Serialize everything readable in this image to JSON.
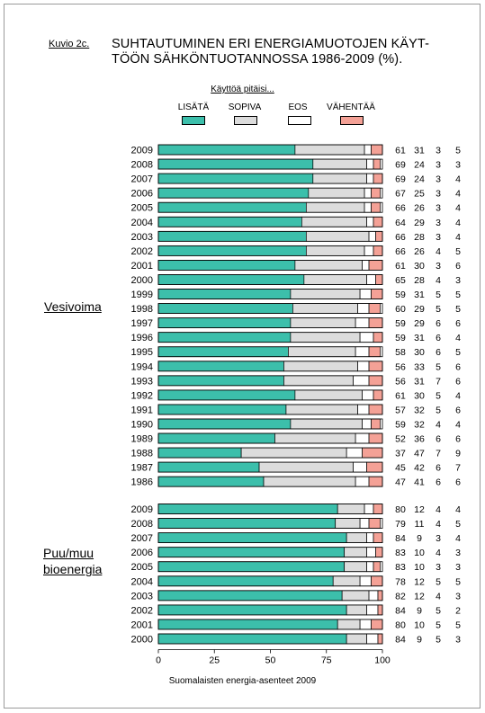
{
  "figure_label": "Kuvio 2c.",
  "title_lines": [
    "SUHTAUTUMINEN ERI ENERGIAMUOTOJEN KÄYT-",
    "TÖÖN SÄHKÖNTUOTANNOSSA 1986-2009 (%)."
  ],
  "legend": {
    "heading": "Käyttöä pitäisi...",
    "items": [
      {
        "label": "LISÄTÄ",
        "color": "#3cbfab"
      },
      {
        "label": "SOPIVA",
        "color": "#dcdcdc"
      },
      {
        "label": "EOS",
        "color": "#ffffff"
      },
      {
        "label": "VÄHENTÄÄ",
        "color": "#f4a196"
      }
    ]
  },
  "source": "Suomalaisten energia-asenteet 2009",
  "chart_data": {
    "type": "bar",
    "orientation": "horizontal",
    "stacked": true,
    "xlim": [
      0,
      100
    ],
    "xticks": [
      "0",
      "25",
      "50",
      "75",
      "100"
    ],
    "series_names": [
      "LISÄTÄ",
      "SOPIVA",
      "EOS",
      "VÄHENTÄÄ"
    ],
    "groups": [
      {
        "label": "Vesivoima",
        "rows": [
          {
            "year": "2009",
            "values": [
              61,
              31,
              3,
              5
            ]
          },
          {
            "year": "2008",
            "values": [
              69,
              24,
              3,
              3
            ]
          },
          {
            "year": "2007",
            "values": [
              69,
              24,
              3,
              4
            ]
          },
          {
            "year": "2006",
            "values": [
              67,
              25,
              3,
              4
            ]
          },
          {
            "year": "2005",
            "values": [
              66,
              26,
              3,
              4
            ]
          },
          {
            "year": "2004",
            "values": [
              64,
              29,
              3,
              4
            ]
          },
          {
            "year": "2003",
            "values": [
              66,
              28,
              3,
              4
            ]
          },
          {
            "year": "2002",
            "values": [
              66,
              26,
              4,
              5
            ]
          },
          {
            "year": "2001",
            "values": [
              61,
              30,
              3,
              6
            ]
          },
          {
            "year": "2000",
            "values": [
              65,
              28,
              4,
              3
            ]
          },
          {
            "year": "1999",
            "values": [
              59,
              31,
              5,
              5
            ]
          },
          {
            "year": "1998",
            "values": [
              60,
              29,
              5,
              5
            ]
          },
          {
            "year": "1997",
            "values": [
              59,
              29,
              6,
              6
            ]
          },
          {
            "year": "1996",
            "values": [
              59,
              31,
              6,
              4
            ]
          },
          {
            "year": "1995",
            "values": [
              58,
              30,
              6,
              5
            ]
          },
          {
            "year": "1994",
            "values": [
              56,
              33,
              5,
              6
            ]
          },
          {
            "year": "1993",
            "values": [
              56,
              31,
              7,
              6
            ]
          },
          {
            "year": "1992",
            "values": [
              61,
              30,
              5,
              4
            ]
          },
          {
            "year": "1991",
            "values": [
              57,
              32,
              5,
              6
            ]
          },
          {
            "year": "1990",
            "values": [
              59,
              32,
              4,
              4
            ]
          },
          {
            "year": "1989",
            "values": [
              52,
              36,
              6,
              6
            ]
          },
          {
            "year": "1988",
            "values": [
              37,
              47,
              7,
              9
            ]
          },
          {
            "year": "1987",
            "values": [
              45,
              42,
              6,
              7
            ]
          },
          {
            "year": "1986",
            "values": [
              47,
              41,
              6,
              6
            ]
          }
        ]
      },
      {
        "label_lines": [
          "Puu/muu",
          "bioenergia"
        ],
        "rows": [
          {
            "year": "2009",
            "values": [
              80,
              12,
              4,
              4
            ]
          },
          {
            "year": "2008",
            "values": [
              79,
              11,
              4,
              5
            ]
          },
          {
            "year": "2007",
            "values": [
              84,
              9,
              3,
              4
            ]
          },
          {
            "year": "2006",
            "values": [
              83,
              10,
              4,
              3
            ]
          },
          {
            "year": "2005",
            "values": [
              83,
              10,
              3,
              3
            ]
          },
          {
            "year": "2004",
            "values": [
              78,
              12,
              5,
              5
            ]
          },
          {
            "year": "2003",
            "values": [
              82,
              12,
              4,
              3
            ]
          },
          {
            "year": "2002",
            "values": [
              84,
              9,
              5,
              2
            ]
          },
          {
            "year": "2001",
            "values": [
              80,
              10,
              5,
              5
            ]
          },
          {
            "year": "2000",
            "values": [
              84,
              9,
              5,
              3
            ]
          }
        ]
      }
    ]
  }
}
